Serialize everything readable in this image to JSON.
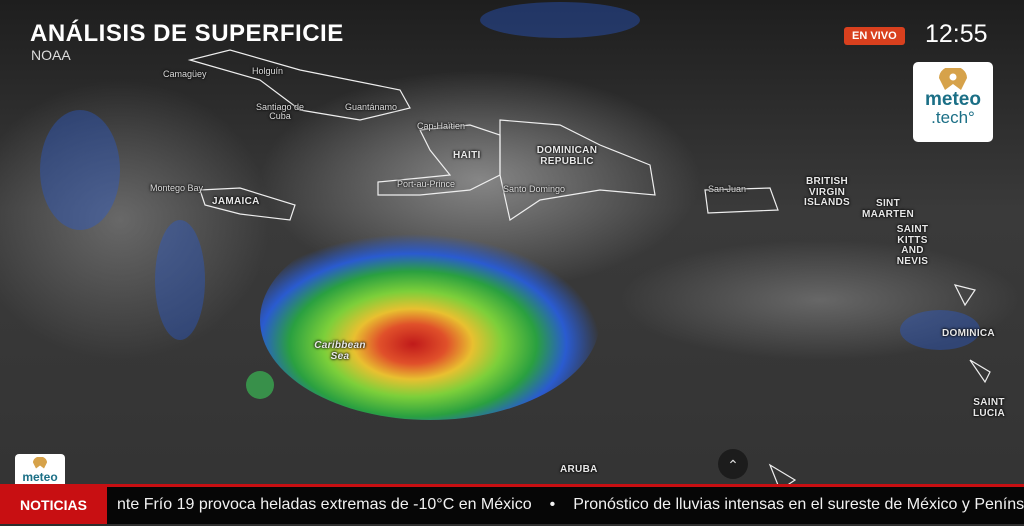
{
  "header": {
    "title": "ANÁLISIS DE SUPERFICIE",
    "source": "NOAA"
  },
  "status": {
    "live_label": "EN VIVO",
    "time": "12:55",
    "live_color": "#d9401e"
  },
  "brand": {
    "line1": "meteo",
    "line2": ".tech°",
    "color": "#1b6f86",
    "mini": "meteo"
  },
  "map": {
    "labels": {
      "camaguey": "Camagüey",
      "holguin": "Holguín",
      "santiago": "Santiago de Cuba",
      "guantanamo": "Guantánamo",
      "cap_haitien": "Cap-Haïtien",
      "haiti": "HAITI",
      "dominican": "DOMINICAN REPUBLIC",
      "port_au_prince": "Port-au-Prince",
      "santo_domingo": "Santo Domingo",
      "montego": "Montego Bay",
      "jamaica": "JAMAICA",
      "san_juan": "San Juan",
      "bvi": "BRITISH VIRGIN ISLANDS",
      "sint_maarten": "SINT MAARTEN",
      "skn": "SAINT KITTS AND NEVIS",
      "dominica": "DOMINICA",
      "saint_lucia": "SAINT LUCIA",
      "caribbean": "Caribbean Sea",
      "aruba": "ARUBA"
    },
    "scroll_up_icon": "chevron-up-icon"
  },
  "ticker": {
    "label": "NOTICIAS",
    "label_color": "#c80f12",
    "items": [
      "nte Frío 19 provoca heladas extremas de -10°C en México",
      "Pronóstico de lluvias intensas en el sureste de México y Península"
    ],
    "separator": "•"
  }
}
